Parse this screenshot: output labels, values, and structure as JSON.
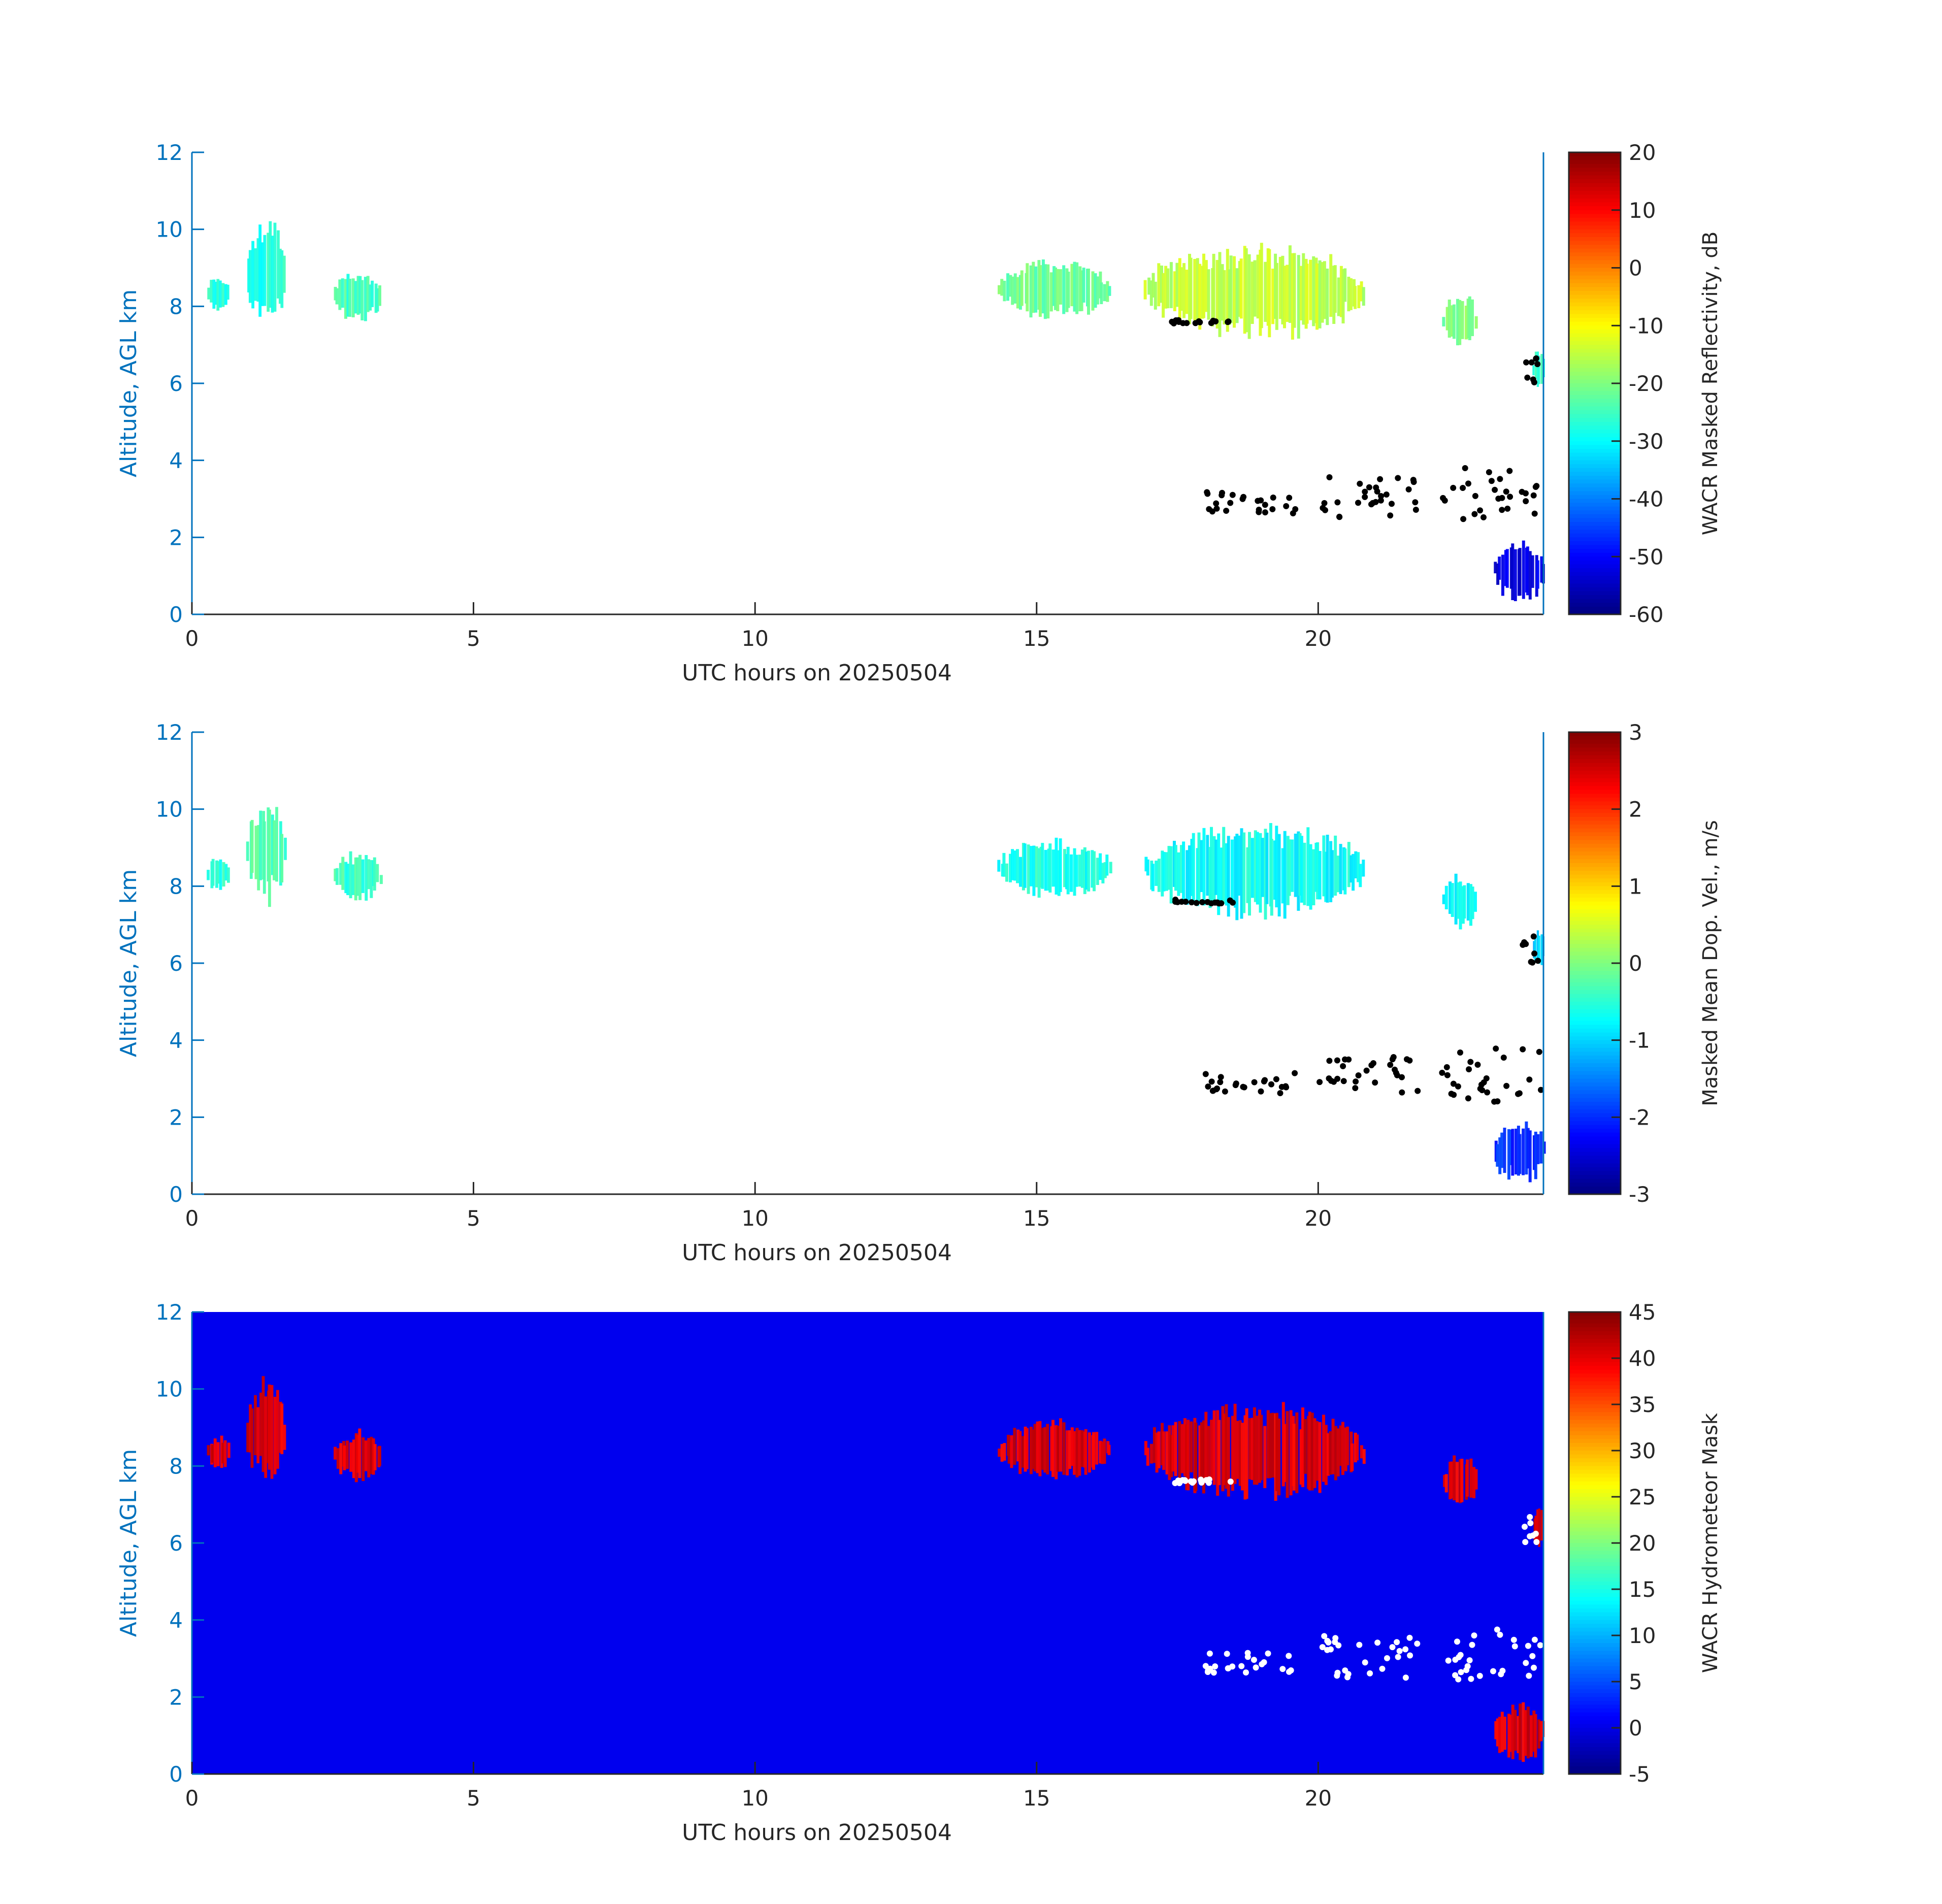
{
  "chart_data": [
    {
      "type": "heatmap",
      "xlabel": "UTC hours on 20250504",
      "ylabel": "Altitude, AGL km",
      "xlim": [
        0,
        24
      ],
      "ylim": [
        0,
        12
      ],
      "xticks": [
        0,
        5,
        10,
        15,
        20
      ],
      "yticks": [
        0,
        2,
        4,
        6,
        8,
        10,
        12
      ],
      "background": "#ffffff",
      "colorbar": {
        "label": "WACR Masked Reflectivity, dB",
        "colormap": "jet",
        "range": [
          -60,
          20
        ],
        "ticks": [
          20,
          10,
          0,
          -10,
          -20,
          -30,
          -40,
          -50,
          -60
        ]
      },
      "regions": [
        {
          "x": [
            0.25,
            0.65
          ],
          "y": [
            7.9,
            8.8
          ],
          "value": -28
        },
        {
          "x": [
            0.95,
            1.65
          ],
          "y": [
            7.6,
            10.2
          ],
          "value": -27
        },
        {
          "x": [
            2.5,
            3.35
          ],
          "y": [
            7.6,
            8.9
          ],
          "value": -25
        },
        {
          "x": [
            14.3,
            16.3
          ],
          "y": [
            7.7,
            9.2
          ],
          "value": -22
        },
        {
          "x": [
            16.9,
            20.8
          ],
          "y": [
            7.2,
            9.6
          ],
          "value": -15
        },
        {
          "x": [
            22.2,
            22.8
          ],
          "y": [
            6.9,
            8.3
          ],
          "value": -20
        },
        {
          "x": [
            23.8,
            24.0
          ],
          "y": [
            5.9,
            6.9
          ],
          "value": -25
        },
        {
          "x": [
            23.1,
            24.0
          ],
          "y": [
            0.3,
            1.9
          ],
          "value": -52
        }
      ],
      "markers": [
        {
          "x": [
            18.0,
            19.6
          ],
          "y": [
            2.6,
            3.2
          ]
        },
        {
          "x": [
            20.0,
            21.8
          ],
          "y": [
            2.5,
            3.6
          ]
        },
        {
          "x": [
            22.2,
            24.0
          ],
          "y": [
            2.4,
            3.8
          ]
        },
        {
          "x": [
            17.4,
            18.5
          ],
          "y": [
            7.55,
            7.65
          ]
        },
        {
          "x": [
            23.6,
            24.0
          ],
          "y": [
            6.0,
            6.7
          ]
        }
      ]
    },
    {
      "type": "heatmap",
      "xlabel": "UTC hours on 20250504",
      "ylabel": "Altitude, AGL km",
      "xlim": [
        0,
        24
      ],
      "ylim": [
        0,
        12
      ],
      "xticks": [
        0,
        5,
        10,
        15,
        20
      ],
      "yticks": [
        0,
        2,
        4,
        6,
        8,
        10,
        12
      ],
      "background": "#ffffff",
      "colorbar": {
        "label": "Masked Mean Dop. Vel., m/s",
        "colormap": "jet",
        "range": [
          -3,
          3
        ],
        "ticks": [
          3,
          2,
          1,
          0,
          -1,
          -2,
          -3
        ]
      },
      "regions": [
        {
          "x": [
            0.25,
            0.65
          ],
          "y": [
            7.9,
            8.8
          ],
          "value": -0.5
        },
        {
          "x": [
            0.95,
            1.65
          ],
          "y": [
            7.6,
            10.2
          ],
          "value": -0.3
        },
        {
          "x": [
            2.5,
            3.35
          ],
          "y": [
            7.6,
            8.9
          ],
          "value": -0.4
        },
        {
          "x": [
            14.3,
            16.3
          ],
          "y": [
            7.7,
            9.2
          ],
          "value": -0.6
        },
        {
          "x": [
            16.9,
            20.8
          ],
          "y": [
            7.2,
            9.6
          ],
          "value": -0.7
        },
        {
          "x": [
            22.2,
            22.8
          ],
          "y": [
            6.9,
            8.3
          ],
          "value": -0.8
        },
        {
          "x": [
            23.8,
            24.0
          ],
          "y": [
            5.9,
            6.9
          ],
          "value": -1.0
        },
        {
          "x": [
            23.1,
            24.0
          ],
          "y": [
            0.3,
            1.9
          ],
          "value": -2.0
        }
      ],
      "markers": [
        {
          "x": [
            18.0,
            19.6
          ],
          "y": [
            2.6,
            3.2
          ]
        },
        {
          "x": [
            20.0,
            21.8
          ],
          "y": [
            2.5,
            3.6
          ]
        },
        {
          "x": [
            22.2,
            24.0
          ],
          "y": [
            2.4,
            3.8
          ]
        },
        {
          "x": [
            17.4,
            18.5
          ],
          "y": [
            7.55,
            7.65
          ]
        },
        {
          "x": [
            23.6,
            24.0
          ],
          "y": [
            6.0,
            6.7
          ]
        }
      ]
    },
    {
      "type": "heatmap",
      "xlabel": "UTC hours on 20250504",
      "ylabel": "Altitude, AGL km",
      "xlim": [
        0,
        24
      ],
      "ylim": [
        0,
        12
      ],
      "xticks": [
        0,
        5,
        10,
        15,
        20
      ],
      "yticks": [
        0,
        2,
        4,
        6,
        8,
        10,
        12
      ],
      "background": "#0000ee",
      "colorbar": {
        "label": "WACR Hydrometeor Mask",
        "colormap": "jet",
        "range": [
          -5,
          45
        ],
        "ticks": [
          45,
          40,
          35,
          30,
          25,
          20,
          15,
          10,
          5,
          0,
          -5
        ]
      },
      "regions": [
        {
          "x": [
            0.25,
            0.65
          ],
          "y": [
            7.9,
            8.8
          ],
          "value": 40
        },
        {
          "x": [
            0.95,
            1.65
          ],
          "y": [
            7.6,
            10.2
          ],
          "value": 40
        },
        {
          "x": [
            2.5,
            3.35
          ],
          "y": [
            7.6,
            8.9
          ],
          "value": 40
        },
        {
          "x": [
            14.3,
            16.3
          ],
          "y": [
            7.7,
            9.2
          ],
          "value": 40
        },
        {
          "x": [
            16.9,
            20.8
          ],
          "y": [
            7.2,
            9.6
          ],
          "value": 40
        },
        {
          "x": [
            22.2,
            22.8
          ],
          "y": [
            6.9,
            8.3
          ],
          "value": 40
        },
        {
          "x": [
            23.8,
            24.0
          ],
          "y": [
            5.9,
            6.9
          ],
          "value": 40
        },
        {
          "x": [
            23.1,
            24.0
          ],
          "y": [
            0.3,
            1.9
          ],
          "value": 40
        }
      ],
      "markers": [
        {
          "x": [
            18.0,
            19.6
          ],
          "y": [
            2.6,
            3.2
          ]
        },
        {
          "x": [
            20.0,
            21.8
          ],
          "y": [
            2.5,
            3.6
          ]
        },
        {
          "x": [
            22.2,
            24.0
          ],
          "y": [
            2.4,
            3.8
          ]
        },
        {
          "x": [
            17.4,
            18.5
          ],
          "y": [
            7.55,
            7.65
          ]
        },
        {
          "x": [
            23.6,
            24.0
          ],
          "y": [
            6.0,
            6.7
          ]
        }
      ]
    }
  ]
}
